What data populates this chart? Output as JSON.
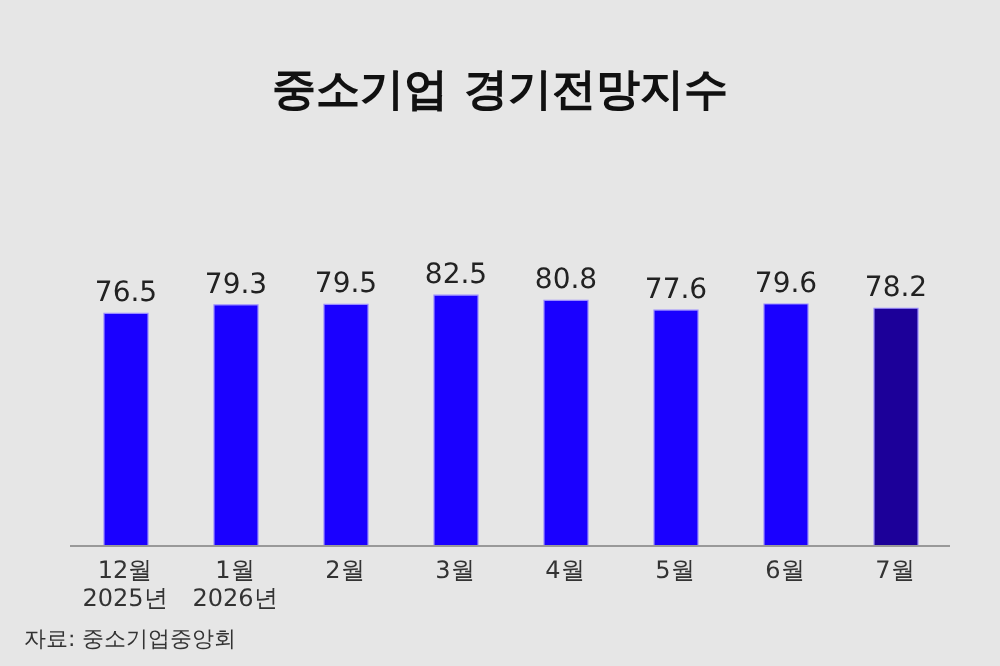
{
  "chart_data": {
    "type": "bar",
    "title": "중소기업 경기전망지수",
    "categories": [
      "12월\n2025년",
      "1월\n2026년",
      "2월",
      "3월",
      "4월",
      "5월",
      "6월",
      "7월"
    ],
    "values": [
      76.5,
      79.3,
      79.5,
      82.5,
      80.8,
      77.6,
      79.6,
      78.2
    ],
    "colors": [
      "#1a00ff",
      "#1a00ff",
      "#1a00ff",
      "#1a00ff",
      "#1a00ff",
      "#1a00ff",
      "#1a00ff",
      "#1c0099"
    ],
    "tick_labels": "x",
    "data_labels": true,
    "grid": false,
    "annotations": [
      "자료: 중소기업중앙회"
    ]
  }
}
